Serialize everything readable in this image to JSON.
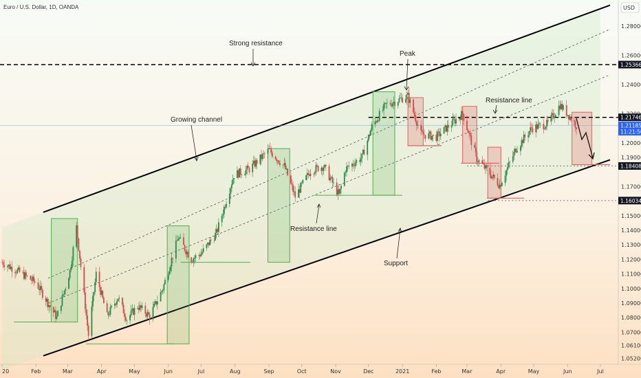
{
  "chart_data": {
    "type": "candlestick",
    "title": "Euro / U.S. Dollar, 1D, OANDA",
    "currency": "USD",
    "colors": {
      "background_top": "#f6fbf5",
      "background_bottom": "#fde4c9",
      "up": "#2b8a4a",
      "down": "#d64a4a",
      "channel_fill": "#cfe8c6",
      "green_box": "#4caf50",
      "red_box": "#e06060"
    },
    "ylim": [
      1.048,
      1.298
    ],
    "y_ticks": [
      "1.28000",
      "1.26000",
      "1.24000",
      "1.22000",
      "1.20000",
      "1.19000",
      "1.17000",
      "1.16000",
      "1.15000",
      "1.14000",
      "1.13000",
      "1.12000",
      "1.11000",
      "1.10000",
      "1.09000",
      "1.08000",
      "1.07000",
      "1.06100",
      "1.05200"
    ],
    "y_tick_values": [
      1.28,
      1.26,
      1.24,
      1.22,
      1.2,
      1.19,
      1.17,
      1.16,
      1.15,
      1.14,
      1.13,
      1.12,
      1.11,
      1.1,
      1.09,
      1.08,
      1.07,
      1.061,
      1.052
    ],
    "x_ticks": [
      "20",
      "Feb",
      "Mar",
      "Apr",
      "May",
      "Jun",
      "Jul",
      "Aug",
      "Sep",
      "Oct",
      "Nov",
      "Dec",
      "2021",
      "Feb",
      "Mar",
      "Apr",
      "May",
      "Jun",
      "Jul"
    ],
    "x_tick_dates": [
      "2020-01-01",
      "2020-02-01",
      "2020-03-01",
      "2020-04-01",
      "2020-05-01",
      "2020-06-01",
      "2020-07-01",
      "2020-08-01",
      "2020-09-01",
      "2020-10-01",
      "2020-11-01",
      "2020-12-01",
      "2021-01-01",
      "2021-02-01",
      "2021-03-01",
      "2021-04-01",
      "2021-05-01",
      "2021-06-01",
      "2021-07-01"
    ],
    "price_labels": [
      {
        "value": 1.25366,
        "text": "1.25366",
        "kind": "dark"
      },
      {
        "value": 1.21746,
        "text": "1.21746",
        "kind": "dark"
      },
      {
        "value": 1.21185,
        "text": "1.21185",
        "kind": "blue",
        "sub": "11:21:50"
      },
      {
        "value": 1.18408,
        "text": "1.18408",
        "kind": "dark"
      },
      {
        "value": 1.16034,
        "text": "1.16034",
        "kind": "dark"
      }
    ],
    "price_path": [
      [
        "2020-01-01",
        1.118
      ],
      [
        "2020-01-15",
        1.112
      ],
      [
        "2020-02-01",
        1.104
      ],
      [
        "2020-02-20",
        1.08
      ],
      [
        "2020-03-03",
        1.112
      ],
      [
        "2020-03-09",
        1.142
      ],
      [
        "2020-03-20",
        1.068
      ],
      [
        "2020-03-27",
        1.11
      ],
      [
        "2020-04-06",
        1.081
      ],
      [
        "2020-04-16",
        1.094
      ],
      [
        "2020-04-24",
        1.079
      ],
      [
        "2020-05-04",
        1.088
      ],
      [
        "2020-05-15",
        1.081
      ],
      [
        "2020-05-27",
        1.1
      ],
      [
        "2020-06-10",
        1.135
      ],
      [
        "2020-06-22",
        1.12
      ],
      [
        "2020-07-01",
        1.124
      ],
      [
        "2020-07-15",
        1.138
      ],
      [
        "2020-07-31",
        1.178
      ],
      [
        "2020-08-14",
        1.182
      ],
      [
        "2020-09-01",
        1.195
      ],
      [
        "2020-09-15",
        1.184
      ],
      [
        "2020-09-25",
        1.163
      ],
      [
        "2020-10-09",
        1.181
      ],
      [
        "2020-10-21",
        1.184
      ],
      [
        "2020-11-04",
        1.164
      ],
      [
        "2020-11-10",
        1.182
      ],
      [
        "2020-11-25",
        1.19
      ],
      [
        "2020-12-04",
        1.211
      ],
      [
        "2020-12-17",
        1.226
      ],
      [
        "2021-01-06",
        1.232
      ],
      [
        "2021-01-18",
        1.206
      ],
      [
        "2021-02-01",
        1.204
      ],
      [
        "2021-02-25",
        1.22
      ],
      [
        "2021-03-10",
        1.189
      ],
      [
        "2021-03-31",
        1.171
      ],
      [
        "2021-04-15",
        1.196
      ],
      [
        "2021-04-29",
        1.21
      ],
      [
        "2021-05-14",
        1.213
      ],
      [
        "2021-05-25",
        1.226
      ],
      [
        "2021-06-04",
        1.217
      ],
      [
        "2021-06-09",
        1.2118
      ]
    ],
    "horizontal_lines": [
      {
        "value": 1.25366,
        "style": "dashed-heavy"
      },
      {
        "value": 1.21746,
        "style": "dashed-heavy",
        "from": "2020-12-01"
      },
      {
        "value": 1.18408,
        "style": "dotted",
        "from": "2021-03-01"
      },
      {
        "value": 1.16034,
        "style": "dotted",
        "from": "2021-03-20"
      }
    ],
    "channel": {
      "upper": [
        [
          "2020-01-01",
          1.142
        ],
        [
          "2021-07-01",
          1.292
        ]
      ],
      "lower": [
        [
          "2020-01-01",
          1.044
        ],
        [
          "2021-07-01",
          1.186
        ]
      ],
      "dashed_inner": [
        [
          [
            "2020-01-01",
            1.077
          ],
          [
            "2021-07-01",
            1.244
          ]
        ],
        [
          [
            "2020-01-01",
            1.093
          ],
          [
            "2021-07-01",
            1.275
          ]
        ]
      ]
    },
    "green_boxes": [
      {
        "from": "2020-02-15",
        "to": "2020-03-10",
        "low": 1.077,
        "high": 1.148
      },
      {
        "from": "2020-05-31",
        "to": "2020-06-20",
        "low": 1.062,
        "high": 1.143
      },
      {
        "from": "2020-08-31",
        "to": "2020-09-20",
        "low": 1.118,
        "high": 1.196
      },
      {
        "from": "2020-12-05",
        "to": "2020-12-25",
        "low": 1.164,
        "high": 1.235
      }
    ],
    "red_boxes": [
      {
        "from": "2021-01-06",
        "to": "2021-01-20",
        "low": 1.198,
        "high": 1.231
      },
      {
        "from": "2021-02-25",
        "to": "2021-03-10",
        "low": 1.186,
        "high": 1.225
      },
      {
        "from": "2021-03-20",
        "to": "2021-04-01",
        "low": 1.162,
        "high": 1.197
      },
      {
        "from": "2021-06-05",
        "to": "2021-06-23",
        "low": 1.185,
        "high": 1.221
      }
    ],
    "annotations": [
      "Strong resistance",
      "Peak",
      "Growing channel",
      "Resistance line",
      "Resistance line",
      "Support"
    ]
  }
}
